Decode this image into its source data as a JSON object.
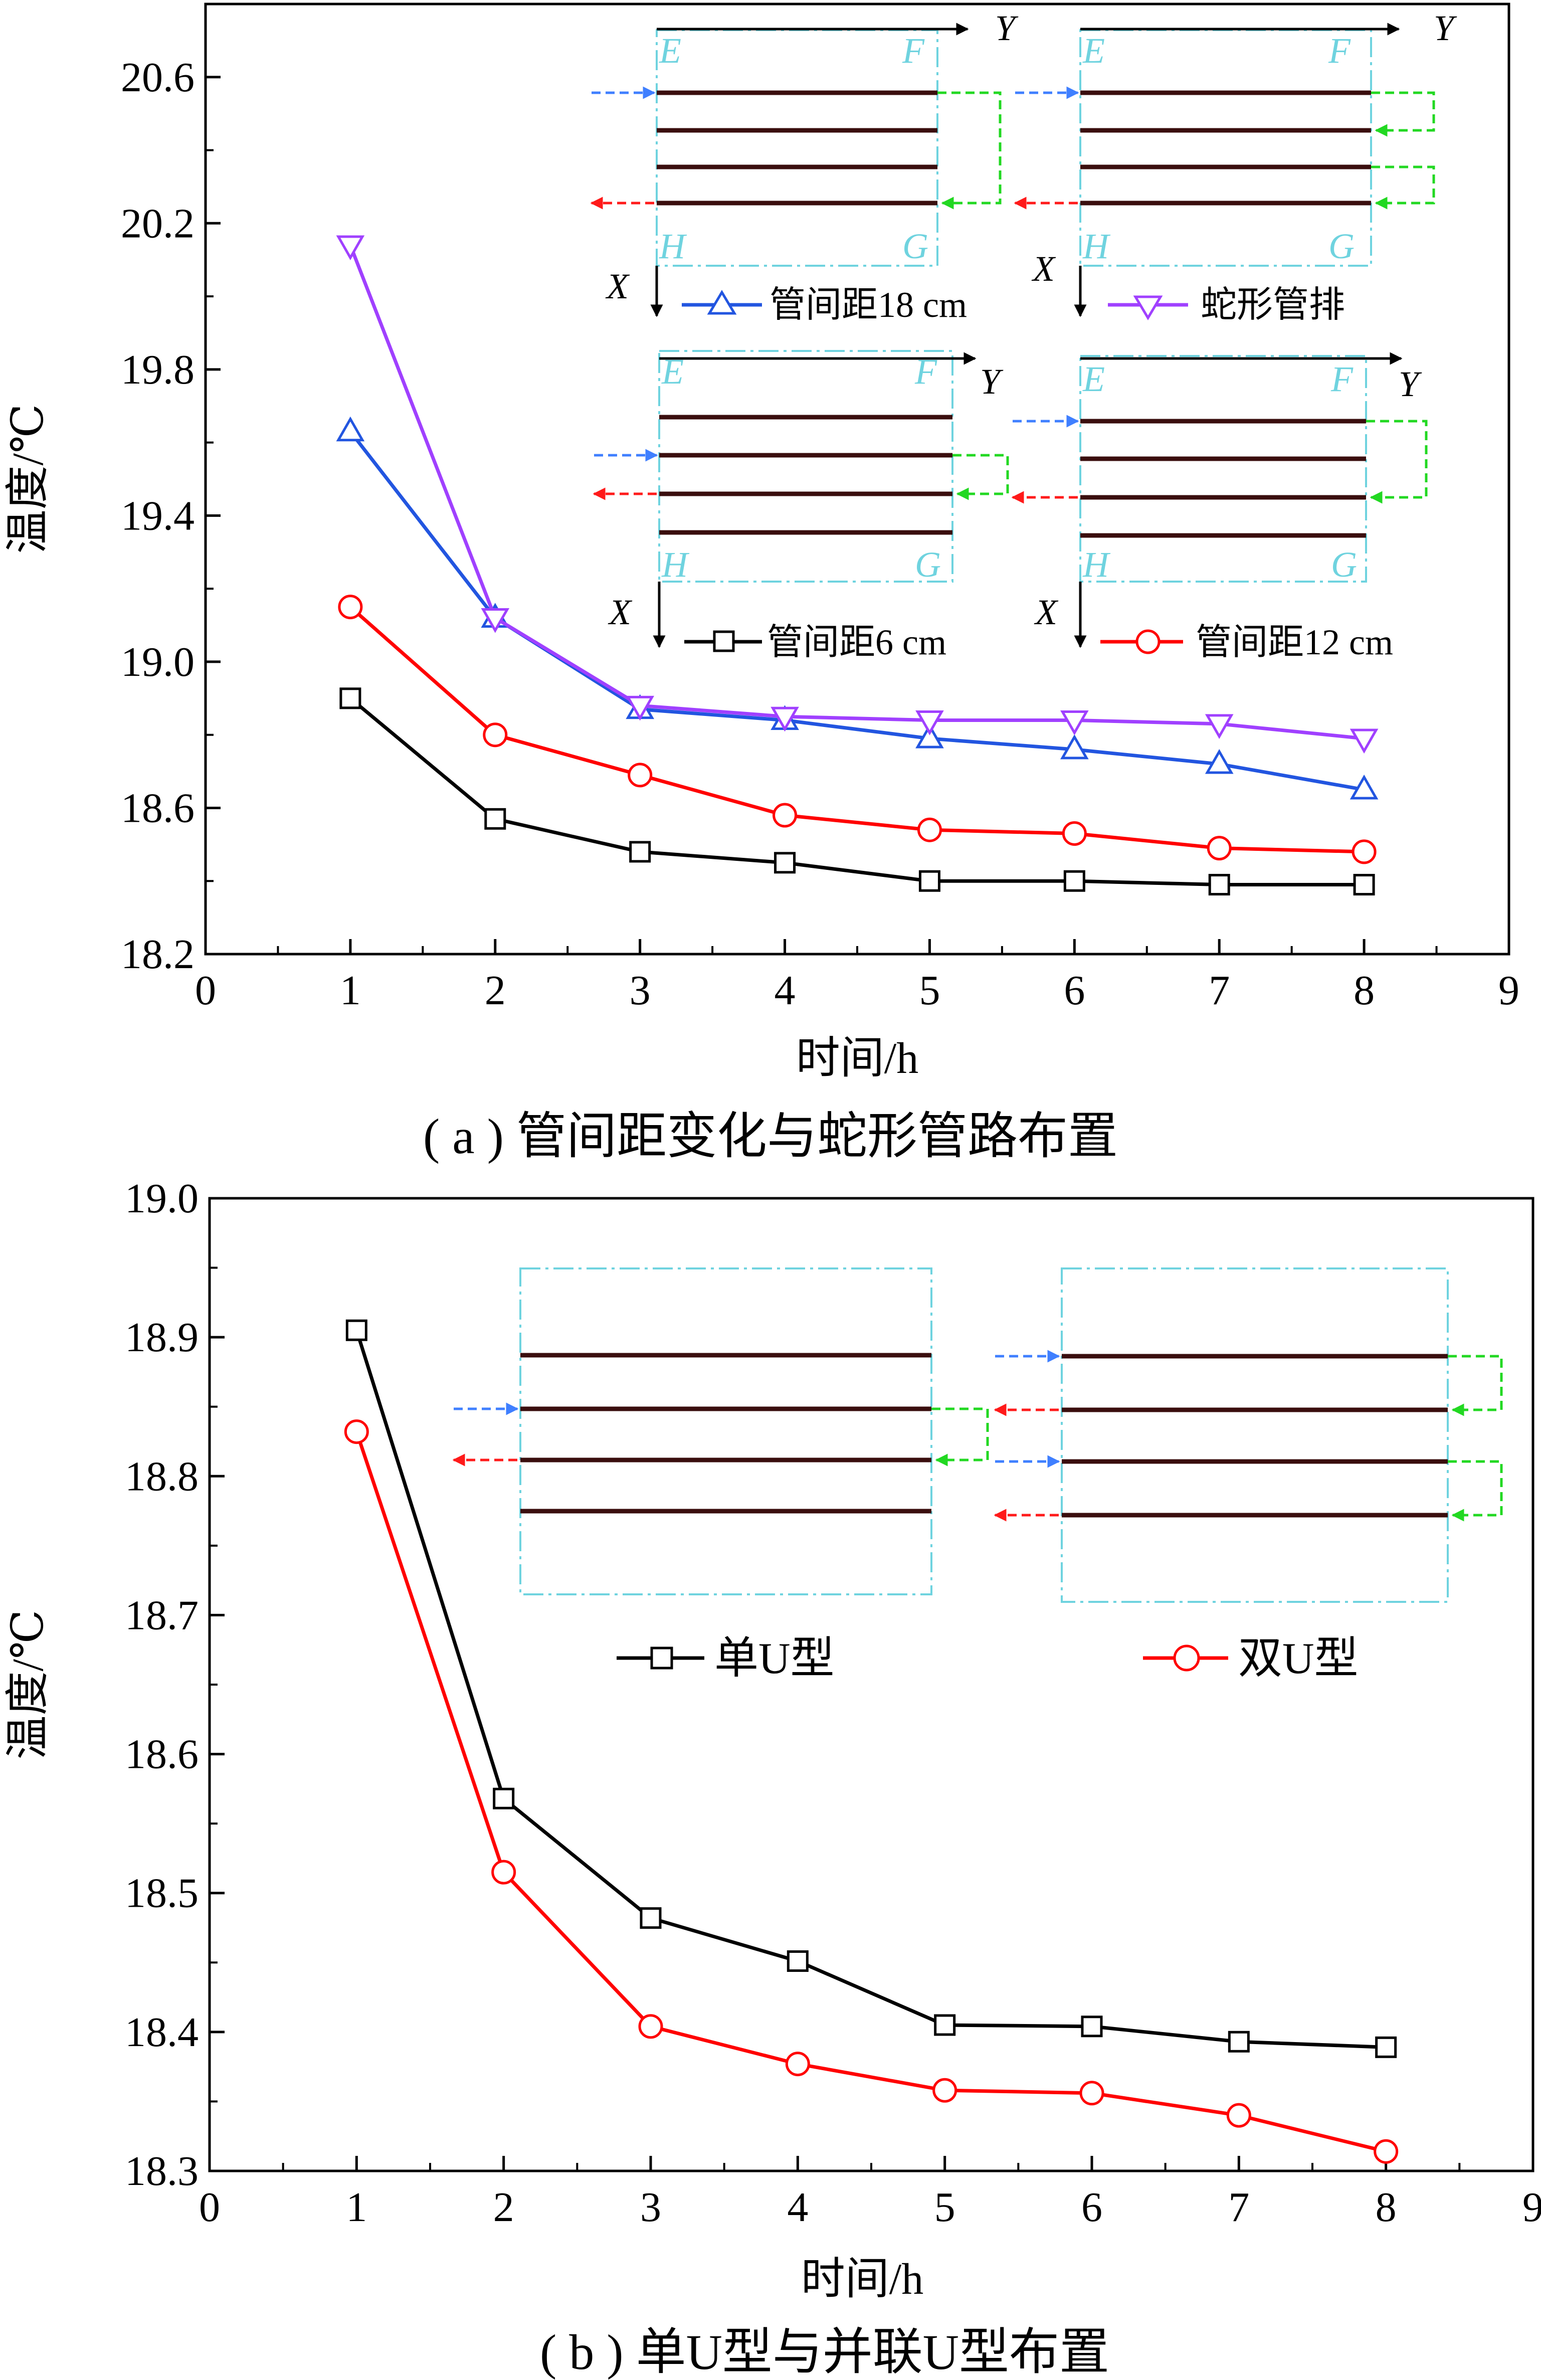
{
  "chart_data": [
    {
      "type": "line",
      "caption": "( a ) 管间距变化与蛇形管路布置",
      "xlabel": "时间/h",
      "ylabel": "温度/℃",
      "xlim": [
        0,
        9
      ],
      "ylim": [
        18.2,
        20.8
      ],
      "x_ticks": [
        "0",
        "1",
        "2",
        "3",
        "4",
        "5",
        "6",
        "7",
        "8",
        "9"
      ],
      "y_ticks": [
        "18.2",
        "18.6",
        "19.0",
        "19.4",
        "19.8",
        "20.2",
        "20.6"
      ],
      "x": [
        1,
        2,
        3,
        4,
        5,
        6,
        7,
        8
      ],
      "series": [
        {
          "name": "管间距6 cm",
          "color": "#000000",
          "marker": "square",
          "values": [
            18.9,
            18.57,
            18.48,
            18.45,
            18.4,
            18.4,
            18.39,
            18.39
          ]
        },
        {
          "name": "管间距12 cm",
          "color": "#ff0000",
          "marker": "circle",
          "values": [
            19.15,
            18.8,
            18.69,
            18.58,
            18.54,
            18.53,
            18.49,
            18.48
          ]
        },
        {
          "name": "管间距18 cm",
          "color": "#2255e0",
          "marker": "triangle-up",
          "values": [
            19.63,
            19.12,
            18.87,
            18.84,
            18.79,
            18.76,
            18.72,
            18.65
          ]
        },
        {
          "name": "蛇形管排",
          "color": "#a040ff",
          "marker": "triangle-down",
          "values": [
            20.14,
            19.12,
            18.88,
            18.85,
            18.84,
            18.84,
            18.83,
            18.79
          ]
        }
      ],
      "insets": [
        {
          "corners": [
            "E",
            "F",
            "H",
            "G"
          ],
          "axes": [
            "X",
            "Y"
          ],
          "pipes": 4
        },
        {
          "corners": [
            "E",
            "F",
            "H",
            "G"
          ],
          "axes": [
            "X",
            "Y"
          ],
          "pipes": 4
        },
        {
          "corners": [
            "E",
            "F",
            "H",
            "G"
          ],
          "axes": [
            "X",
            "Y"
          ],
          "pipes": 4
        },
        {
          "corners": [
            "E",
            "F",
            "H",
            "G"
          ],
          "axes": [
            "X",
            "Y"
          ],
          "pipes": 4
        }
      ]
    },
    {
      "type": "line",
      "caption": "( b ) 单U型与并联U型布置",
      "xlabel": "时间/h",
      "ylabel": "温度/℃",
      "xlim": [
        0,
        9
      ],
      "ylim": [
        18.3,
        19.0
      ],
      "x_ticks": [
        "0",
        "1",
        "2",
        "3",
        "4",
        "5",
        "6",
        "7",
        "8",
        "9"
      ],
      "y_ticks": [
        "18.3",
        "18.4",
        "18.5",
        "18.6",
        "18.7",
        "18.8",
        "18.9",
        "19.0"
      ],
      "x": [
        1,
        2,
        3,
        4,
        5,
        6,
        7,
        8
      ],
      "series": [
        {
          "name": "单U型",
          "color": "#000000",
          "marker": "square",
          "values": [
            18.905,
            18.568,
            18.482,
            18.451,
            18.405,
            18.404,
            18.393,
            18.389
          ]
        },
        {
          "name": "双U型",
          "color": "#ff0000",
          "marker": "circle",
          "values": [
            18.832,
            18.515,
            18.404,
            18.377,
            18.358,
            18.356,
            18.34,
            18.314
          ]
        }
      ]
    }
  ],
  "colors": {
    "inlet_arrow": "#3f7fff",
    "outlet_arrow": "#ff1a1a",
    "return_line": "#22d822",
    "pipe": "#3a0e0e",
    "inset_border": "#6fd3df"
  }
}
